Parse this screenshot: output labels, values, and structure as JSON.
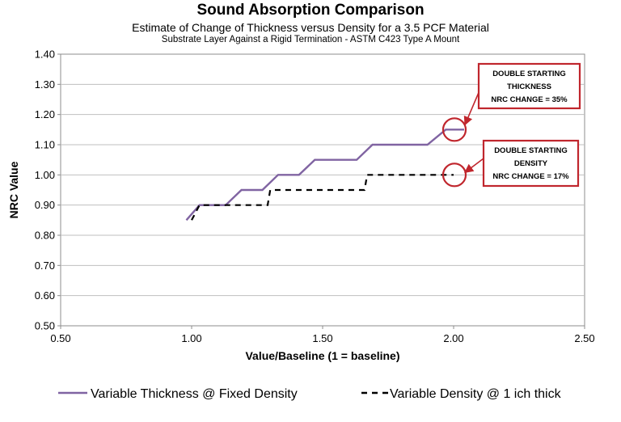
{
  "chart_data": {
    "type": "line",
    "title": "Sound Absorption Comparison",
    "subtitle": "Estimate of Change of Thickness versus Density for a 3.5 PCF Material",
    "subtitle2": "Substrate Layer Against a Rigid Termination  - ASTM C423 Type A Mount",
    "xlabel": "Value/Baseline (1 = baseline)",
    "ylabel": "NRC Value",
    "xlim": [
      0.5,
      2.5
    ],
    "ylim": [
      0.5,
      1.4
    ],
    "xticks": [
      "0.50",
      "1.00",
      "1.50",
      "2.00",
      "2.50"
    ],
    "yticks": [
      "0.50",
      "0.60",
      "0.70",
      "0.80",
      "0.90",
      "1.00",
      "1.10",
      "1.20",
      "1.30",
      "1.40"
    ],
    "grid": "horizontal",
    "legend_position": "bottom",
    "series": [
      {
        "name": "Variable Thickness @ Fixed Density",
        "style": "solid",
        "color": "#8064a2",
        "x": [
          0.98,
          1.03,
          1.13,
          1.19,
          1.27,
          1.33,
          1.41,
          1.47,
          1.63,
          1.69,
          1.9,
          1.97,
          2.04
        ],
        "y": [
          0.85,
          0.9,
          0.9,
          0.95,
          0.95,
          1.0,
          1.0,
          1.05,
          1.05,
          1.1,
          1.1,
          1.15,
          1.15
        ]
      },
      {
        "name": "Variable Density @ 1 ich thick",
        "style": "dashed",
        "color": "#000000",
        "x": [
          1.0,
          1.03,
          1.29,
          1.3,
          1.66,
          1.67,
          2.0
        ],
        "y": [
          0.85,
          0.9,
          0.9,
          0.95,
          0.95,
          1.0,
          1.0
        ]
      }
    ],
    "annotations": [
      {
        "lines": [
          "DOUBLE STARTING",
          "THICKNESS",
          "NRC CHANGE = 35%"
        ],
        "target": [
          2.0,
          1.15
        ]
      },
      {
        "lines": [
          "DOUBLE STARTING",
          "DENSITY",
          "NRC CHANGE = 17%"
        ],
        "target": [
          2.0,
          1.0
        ]
      }
    ]
  },
  "colors": {
    "annotation_red": "#c0262d",
    "grid": "#bfbfbf"
  }
}
